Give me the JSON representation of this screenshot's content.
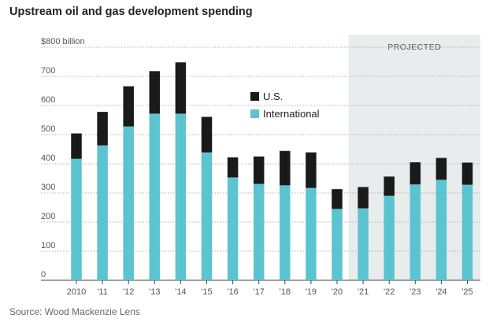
{
  "chart_data": {
    "type": "bar",
    "stacked": true,
    "title": "Upstream oil and gas development spending",
    "source": "Source: Wood Mackenzie Lens",
    "y_unit_label": "$800 billion",
    "ylim": [
      0,
      800
    ],
    "y_ticks": [
      0,
      100,
      200,
      300,
      400,
      500,
      600,
      700,
      800
    ],
    "y_tick_labels": [
      "0",
      "100",
      "200",
      "300",
      "400",
      "500",
      "600",
      "700",
      "$800 billion"
    ],
    "grid": true,
    "categories": [
      "2010",
      "'11",
      "'12",
      "'13",
      "'14",
      "'15",
      "'16",
      "'17",
      "'18",
      "'19",
      "'20",
      "'21",
      "'22",
      "'23",
      "'24",
      "'25"
    ],
    "series": [
      {
        "name": "International",
        "color": "#5bc4d0",
        "values": [
          417,
          463,
          528,
          572,
          572,
          439,
          353,
          331,
          326,
          317,
          245,
          247,
          290,
          329,
          345,
          328
        ]
      },
      {
        "name": "U.S.",
        "color": "#1a1a1a",
        "values": [
          87,
          115,
          138,
          146,
          176,
          122,
          69,
          94,
          118,
          122,
          68,
          73,
          66,
          76,
          75,
          76
        ]
      }
    ],
    "legend": {
      "placement": "center-top",
      "entries": [
        "U.S.",
        "International"
      ]
    },
    "projected": {
      "label": "PROJECTED",
      "from_category": "'21",
      "to_category": "'25"
    }
  }
}
